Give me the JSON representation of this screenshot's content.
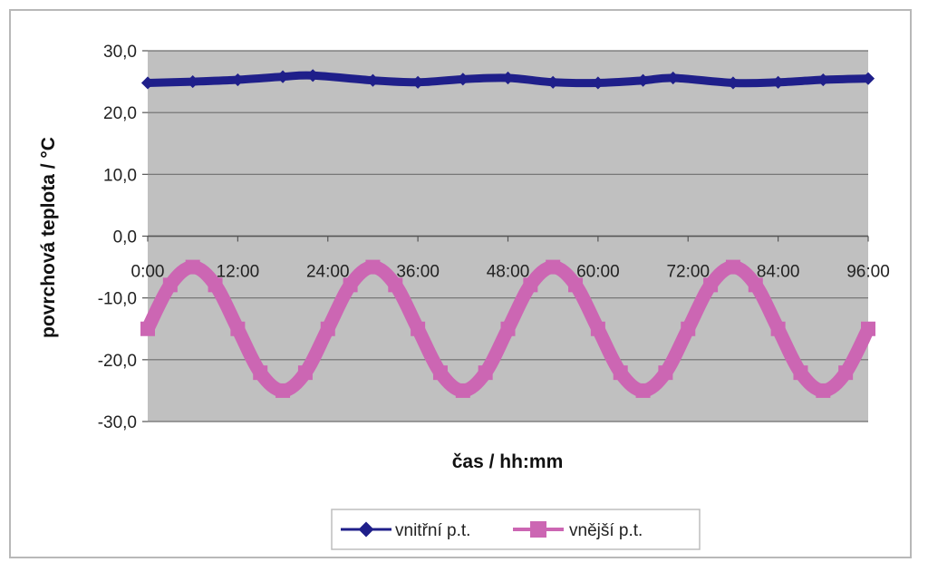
{
  "chart_data": {
    "type": "line",
    "title": "",
    "xlabel": "čas / hh:mm",
    "ylabel": "povrchová teplota / °C",
    "x_ticks": [
      "0:00",
      "12:00",
      "24:00",
      "36:00",
      "48:00",
      "60:00",
      "72:00",
      "84:00",
      "96:00"
    ],
    "x_range_hours": [
      0,
      96
    ],
    "ylim": [
      -30,
      30
    ],
    "y_ticks": [
      "30,0",
      "20,0",
      "10,0",
      "0,0",
      "-10,0",
      "-20,0",
      "-30,0"
    ],
    "grid": "horizontal",
    "plot_background": "#c0c0c0",
    "legend_position": "bottom",
    "series": [
      {
        "name": "vnitřní p.t.",
        "color": "#1f1f8a",
        "marker": "diamond",
        "x": [
          0,
          6,
          12,
          18,
          22,
          30,
          36,
          42,
          48,
          54,
          60,
          66,
          70,
          78,
          84,
          90,
          96
        ],
        "y": [
          24.8,
          25.0,
          25.3,
          25.8,
          26.0,
          25.2,
          24.9,
          25.4,
          25.6,
          24.9,
          24.8,
          25.2,
          25.6,
          24.8,
          24.9,
          25.3,
          25.5
        ]
      },
      {
        "name": "vnější p.t.",
        "color": "#cc66b3",
        "marker": "square",
        "x": [
          0,
          3,
          6,
          9,
          12,
          15,
          18,
          21,
          24,
          27,
          30,
          33,
          36,
          39,
          42,
          45,
          48,
          51,
          54,
          57,
          60,
          63,
          66,
          69,
          72,
          75,
          78,
          81,
          84,
          87,
          90,
          93,
          96
        ],
        "y": [
          -15.0,
          -7.9,
          -5.0,
          -7.9,
          -15.0,
          -22.1,
          -25.0,
          -22.1,
          -15.0,
          -7.9,
          -5.0,
          -7.9,
          -15.0,
          -22.1,
          -25.0,
          -22.1,
          -15.0,
          -7.9,
          -5.0,
          -7.9,
          -15.0,
          -22.1,
          -25.0,
          -22.1,
          -15.0,
          -7.9,
          -5.0,
          -7.9,
          -15.0,
          -22.1,
          -25.0,
          -22.1,
          -15.0
        ]
      }
    ]
  }
}
